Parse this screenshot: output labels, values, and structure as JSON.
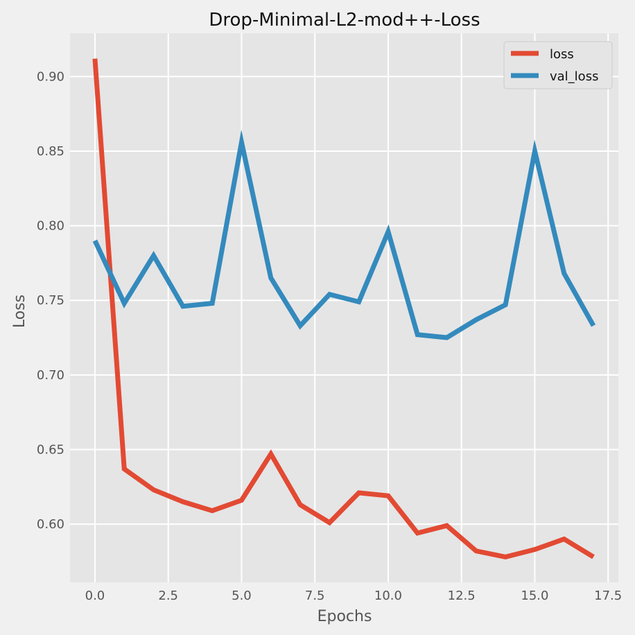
{
  "chart_data": {
    "type": "line",
    "title": "Drop-Minimal-L2-mod++-Loss",
    "xlabel": "Epochs",
    "ylabel": "Loss",
    "x": [
      0,
      1,
      2,
      3,
      4,
      5,
      6,
      7,
      8,
      9,
      10,
      11,
      12,
      13,
      14,
      15,
      16,
      17
    ],
    "xlim": [
      -0.85,
      17.85
    ],
    "ylim": [
      0.561,
      0.929
    ],
    "xticks": [
      0.0,
      2.5,
      5.0,
      7.5,
      10.0,
      12.5,
      15.0,
      17.5
    ],
    "yticks": [
      0.6,
      0.65,
      0.7,
      0.75,
      0.8,
      0.85,
      0.9
    ],
    "xtick_labels": [
      "0.0",
      "2.5",
      "5.0",
      "7.5",
      "10.0",
      "12.5",
      "15.0",
      "17.5"
    ],
    "ytick_labels": [
      "0.60",
      "0.65",
      "0.70",
      "0.75",
      "0.80",
      "0.85",
      "0.90"
    ],
    "grid": true,
    "legend_position": "top-right",
    "series": [
      {
        "name": "loss",
        "color": "#e24a33",
        "values": [
          0.912,
          0.637,
          0.623,
          0.615,
          0.609,
          0.616,
          0.647,
          0.613,
          0.601,
          0.621,
          0.619,
          0.594,
          0.599,
          0.582,
          0.578,
          0.583,
          0.59,
          0.578
        ]
      },
      {
        "name": "val_loss",
        "color": "#348abd",
        "values": [
          0.79,
          0.748,
          0.78,
          0.746,
          0.748,
          0.856,
          0.765,
          0.733,
          0.754,
          0.749,
          0.796,
          0.727,
          0.725,
          0.737,
          0.747,
          0.85,
          0.768,
          0.733
        ]
      }
    ]
  }
}
